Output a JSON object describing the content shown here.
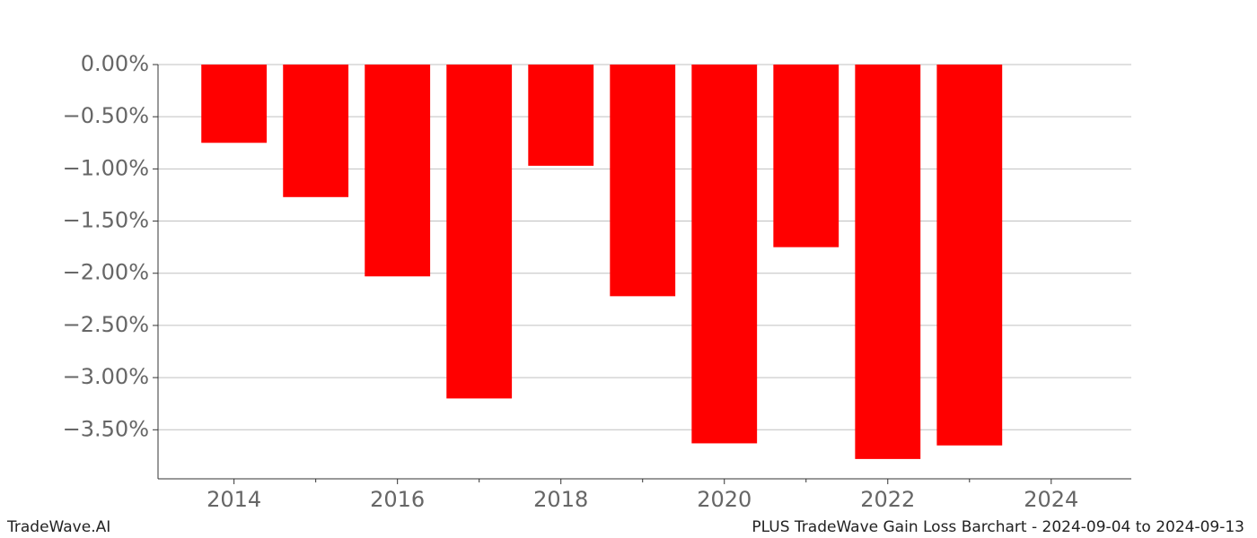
{
  "chart_data": {
    "type": "bar",
    "title": "PLUS TradeWave Gain Loss Barchart - 2024-09-04 to 2024-09-13",
    "watermark": "TradeWave.AI",
    "x": [
      2014,
      2015,
      2016,
      2017,
      2018,
      2019,
      2020,
      2021,
      2022,
      2023
    ],
    "values": [
      -0.75,
      -1.27,
      -2.03,
      -3.2,
      -0.97,
      -2.22,
      -3.63,
      -1.75,
      -3.78,
      -3.65
    ],
    "color": "#ff0000",
    "bar_width": 0.8,
    "xlim": [
      2013.07,
      2024.98
    ],
    "xticks": [
      2014,
      2016,
      2018,
      2020,
      2022,
      2024
    ],
    "xminorticks": [
      2015,
      2017,
      2019,
      2021,
      2023
    ],
    "ylim": [
      -3.97,
      0
    ],
    "yticks": [
      {
        "value": 0,
        "label": "0.00%"
      },
      {
        "value": -0.5,
        "label": "−0.50%"
      },
      {
        "value": -1,
        "label": "−1.00%"
      },
      {
        "value": -1.5,
        "label": "−1.50%"
      },
      {
        "value": -2,
        "label": "−2.00%"
      },
      {
        "value": -2.5,
        "label": "−2.50%"
      },
      {
        "value": -3,
        "label": "−3.00%"
      },
      {
        "value": -3.5,
        "label": "−3.50%"
      }
    ],
    "grid": true
  }
}
